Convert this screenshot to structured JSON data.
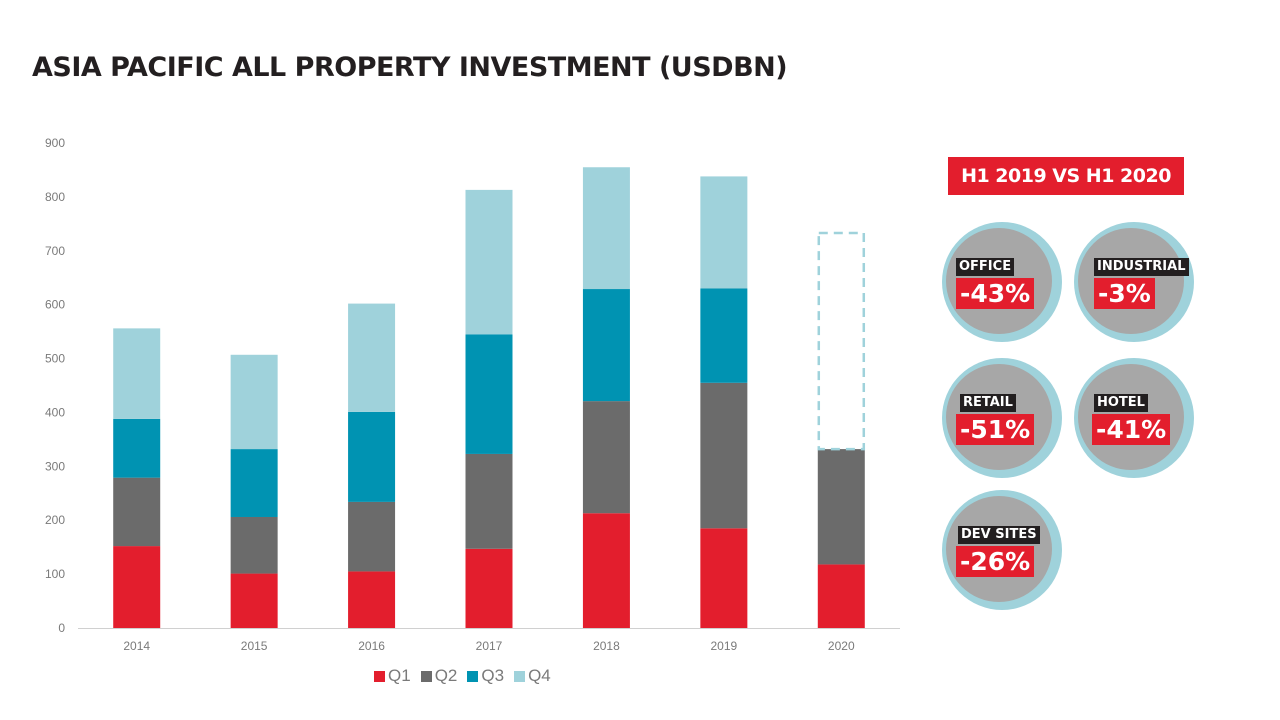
{
  "title": "ASIA PACIFIC ALL PROPERTY INVESTMENT (USDBN)",
  "chart_data": {
    "type": "bar",
    "stacked": true,
    "categories": [
      "2014",
      "2015",
      "2016",
      "2017",
      "2018",
      "2019",
      "2020"
    ],
    "series": [
      {
        "name": "Q1",
        "color": "#e31e2d",
        "values": [
          152,
          101,
          105,
          147,
          213,
          185,
          118
        ]
      },
      {
        "name": "Q2",
        "color": "#6b6b6b",
        "values": [
          127,
          105,
          129,
          176,
          208,
          270,
          214
        ]
      },
      {
        "name": "Q3",
        "color": "#0093b2",
        "values": [
          109,
          126,
          167,
          222,
          208,
          175,
          null
        ]
      },
      {
        "name": "Q4",
        "color": "#9fd2db",
        "values": [
          168,
          175,
          201,
          268,
          226,
          208,
          null
        ]
      }
    ],
    "projection": {
      "category": "2020",
      "total": 733,
      "style": "dashed-outline",
      "color": "#9fd2db"
    },
    "yticks": [
      "0",
      "100",
      "200",
      "300",
      "400",
      "500",
      "600",
      "700",
      "800",
      "900"
    ],
    "ylim": [
      0,
      900
    ],
    "xlabel": "",
    "ylabel": "",
    "grid": false,
    "legend_position": "bottom"
  },
  "panel": {
    "header": "H1 2019 VS H1 2020",
    "badges": [
      {
        "label": "OFFICE",
        "value": "-43%"
      },
      {
        "label": "INDUSTRIAL",
        "value": "-3%"
      },
      {
        "label": "RETAIL",
        "value": "-51%"
      },
      {
        "label": "HOTEL",
        "value": "-41%"
      },
      {
        "label": "DEV SITES",
        "value": "-26%"
      }
    ]
  }
}
